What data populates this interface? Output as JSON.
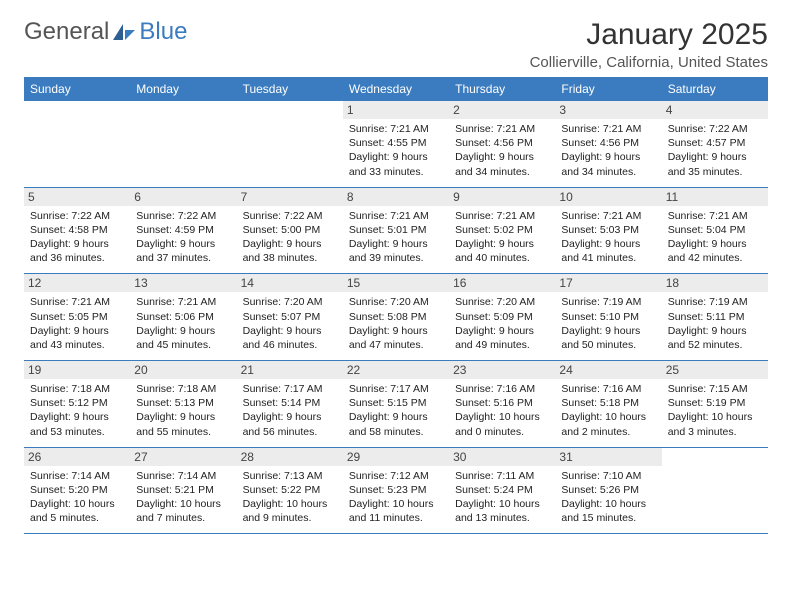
{
  "logo": {
    "text1": "General",
    "text2": "Blue"
  },
  "title": "January 2025",
  "location": "Collierville, California, United States",
  "colors": {
    "header_bg": "#3b7bbf",
    "header_text": "#ffffff",
    "daynum_bg": "#ececec",
    "border": "#3b7bbf",
    "logo_gray": "#555555",
    "logo_blue": "#3b7bbf"
  },
  "weekdays": [
    "Sunday",
    "Monday",
    "Tuesday",
    "Wednesday",
    "Thursday",
    "Friday",
    "Saturday"
  ],
  "weeks": [
    [
      null,
      null,
      null,
      {
        "n": "1",
        "sr": "7:21 AM",
        "ss": "4:55 PM",
        "dl": "9 hours and 33 minutes."
      },
      {
        "n": "2",
        "sr": "7:21 AM",
        "ss": "4:56 PM",
        "dl": "9 hours and 34 minutes."
      },
      {
        "n": "3",
        "sr": "7:21 AM",
        "ss": "4:56 PM",
        "dl": "9 hours and 34 minutes."
      },
      {
        "n": "4",
        "sr": "7:22 AM",
        "ss": "4:57 PM",
        "dl": "9 hours and 35 minutes."
      }
    ],
    [
      {
        "n": "5",
        "sr": "7:22 AM",
        "ss": "4:58 PM",
        "dl": "9 hours and 36 minutes."
      },
      {
        "n": "6",
        "sr": "7:22 AM",
        "ss": "4:59 PM",
        "dl": "9 hours and 37 minutes."
      },
      {
        "n": "7",
        "sr": "7:22 AM",
        "ss": "5:00 PM",
        "dl": "9 hours and 38 minutes."
      },
      {
        "n": "8",
        "sr": "7:21 AM",
        "ss": "5:01 PM",
        "dl": "9 hours and 39 minutes."
      },
      {
        "n": "9",
        "sr": "7:21 AM",
        "ss": "5:02 PM",
        "dl": "9 hours and 40 minutes."
      },
      {
        "n": "10",
        "sr": "7:21 AM",
        "ss": "5:03 PM",
        "dl": "9 hours and 41 minutes."
      },
      {
        "n": "11",
        "sr": "7:21 AM",
        "ss": "5:04 PM",
        "dl": "9 hours and 42 minutes."
      }
    ],
    [
      {
        "n": "12",
        "sr": "7:21 AM",
        "ss": "5:05 PM",
        "dl": "9 hours and 43 minutes."
      },
      {
        "n": "13",
        "sr": "7:21 AM",
        "ss": "5:06 PM",
        "dl": "9 hours and 45 minutes."
      },
      {
        "n": "14",
        "sr": "7:20 AM",
        "ss": "5:07 PM",
        "dl": "9 hours and 46 minutes."
      },
      {
        "n": "15",
        "sr": "7:20 AM",
        "ss": "5:08 PM",
        "dl": "9 hours and 47 minutes."
      },
      {
        "n": "16",
        "sr": "7:20 AM",
        "ss": "5:09 PM",
        "dl": "9 hours and 49 minutes."
      },
      {
        "n": "17",
        "sr": "7:19 AM",
        "ss": "5:10 PM",
        "dl": "9 hours and 50 minutes."
      },
      {
        "n": "18",
        "sr": "7:19 AM",
        "ss": "5:11 PM",
        "dl": "9 hours and 52 minutes."
      }
    ],
    [
      {
        "n": "19",
        "sr": "7:18 AM",
        "ss": "5:12 PM",
        "dl": "9 hours and 53 minutes."
      },
      {
        "n": "20",
        "sr": "7:18 AM",
        "ss": "5:13 PM",
        "dl": "9 hours and 55 minutes."
      },
      {
        "n": "21",
        "sr": "7:17 AM",
        "ss": "5:14 PM",
        "dl": "9 hours and 56 minutes."
      },
      {
        "n": "22",
        "sr": "7:17 AM",
        "ss": "5:15 PM",
        "dl": "9 hours and 58 minutes."
      },
      {
        "n": "23",
        "sr": "7:16 AM",
        "ss": "5:16 PM",
        "dl": "10 hours and 0 minutes."
      },
      {
        "n": "24",
        "sr": "7:16 AM",
        "ss": "5:18 PM",
        "dl": "10 hours and 2 minutes."
      },
      {
        "n": "25",
        "sr": "7:15 AM",
        "ss": "5:19 PM",
        "dl": "10 hours and 3 minutes."
      }
    ],
    [
      {
        "n": "26",
        "sr": "7:14 AM",
        "ss": "5:20 PM",
        "dl": "10 hours and 5 minutes."
      },
      {
        "n": "27",
        "sr": "7:14 AM",
        "ss": "5:21 PM",
        "dl": "10 hours and 7 minutes."
      },
      {
        "n": "28",
        "sr": "7:13 AM",
        "ss": "5:22 PM",
        "dl": "10 hours and 9 minutes."
      },
      {
        "n": "29",
        "sr": "7:12 AM",
        "ss": "5:23 PM",
        "dl": "10 hours and 11 minutes."
      },
      {
        "n": "30",
        "sr": "7:11 AM",
        "ss": "5:24 PM",
        "dl": "10 hours and 13 minutes."
      },
      {
        "n": "31",
        "sr": "7:10 AM",
        "ss": "5:26 PM",
        "dl": "10 hours and 15 minutes."
      },
      null
    ]
  ],
  "labels": {
    "sunrise": "Sunrise:",
    "sunset": "Sunset:",
    "daylight": "Daylight:"
  }
}
